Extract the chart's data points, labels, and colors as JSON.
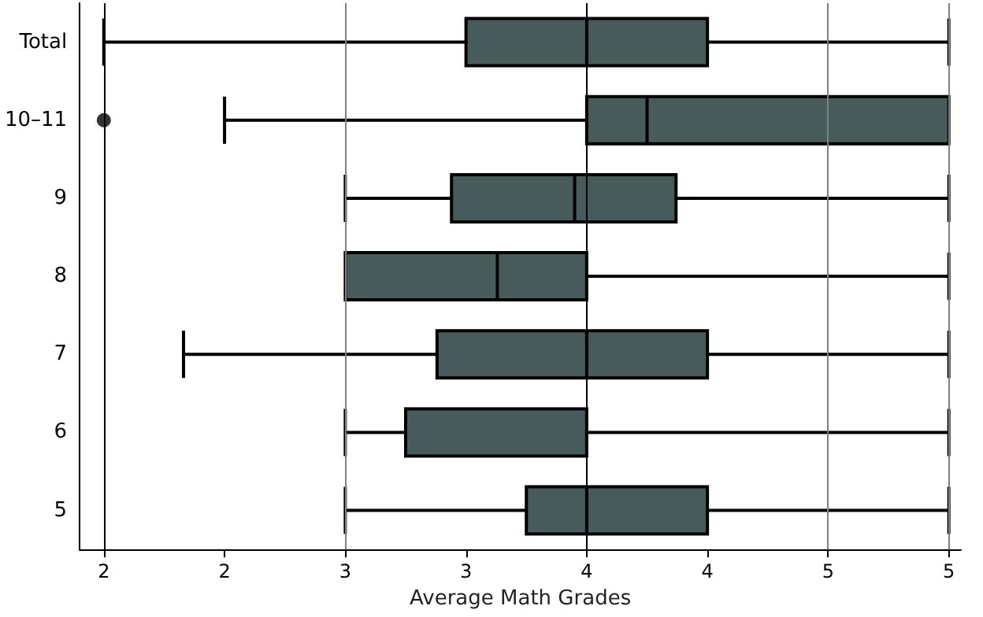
{
  "chart_data": {
    "type": "box",
    "orientation": "horizontal",
    "xlabel": "Average Math Grades",
    "categories": [
      "Total",
      "10–11",
      "9",
      "8",
      "7",
      "6",
      "5"
    ],
    "color": "#475b5a",
    "boxes": [
      {
        "low": 2,
        "q1": 3.5,
        "median": 4,
        "q3": 4.5,
        "high": 5.5
      },
      {
        "low": 2.5,
        "q1": 4,
        "median": 4.25,
        "q3": 5.5,
        "high": 5.5,
        "outliers": [
          2
        ]
      },
      {
        "low": 3,
        "q1": 3.44,
        "median": 3.95,
        "q3": 4.37,
        "high": 5.5
      },
      {
        "low": 3,
        "q1": 3,
        "median": 3.63,
        "q3": 4,
        "high": 5.5
      },
      {
        "low": 2.33,
        "q1": 3.38,
        "median": 4,
        "q3": 4.5,
        "high": 5.5
      },
      {
        "low": 3,
        "q1": 3.25,
        "median": 4,
        "q3": 4,
        "high": 5.5
      },
      {
        "low": 3,
        "q1": 3.75,
        "median": 4,
        "q3": 4.5,
        "high": 5.5
      }
    ],
    "xlim": [
      1.9,
      5.55
    ],
    "xticks": [
      2,
      {
        "value": 2.5,
        "label": "2"
      },
      3,
      {
        "value": 3.5,
        "label": "3"
      },
      4,
      {
        "value": 4.5,
        "label": "4"
      },
      5,
      {
        "value": 5.5,
        "label": "5"
      }
    ],
    "ref_lines": [
      {
        "axis": "x",
        "value": 2,
        "color": "#000000"
      },
      {
        "axis": "x",
        "value": 3,
        "color": "#808080"
      },
      {
        "axis": "x",
        "value": 4,
        "color": "#000000"
      },
      {
        "axis": "x",
        "value": 5,
        "color": "#808080"
      },
      {
        "axis": "x",
        "value": 5.5,
        "color": "#808080"
      }
    ],
    "marker": "circle"
  }
}
